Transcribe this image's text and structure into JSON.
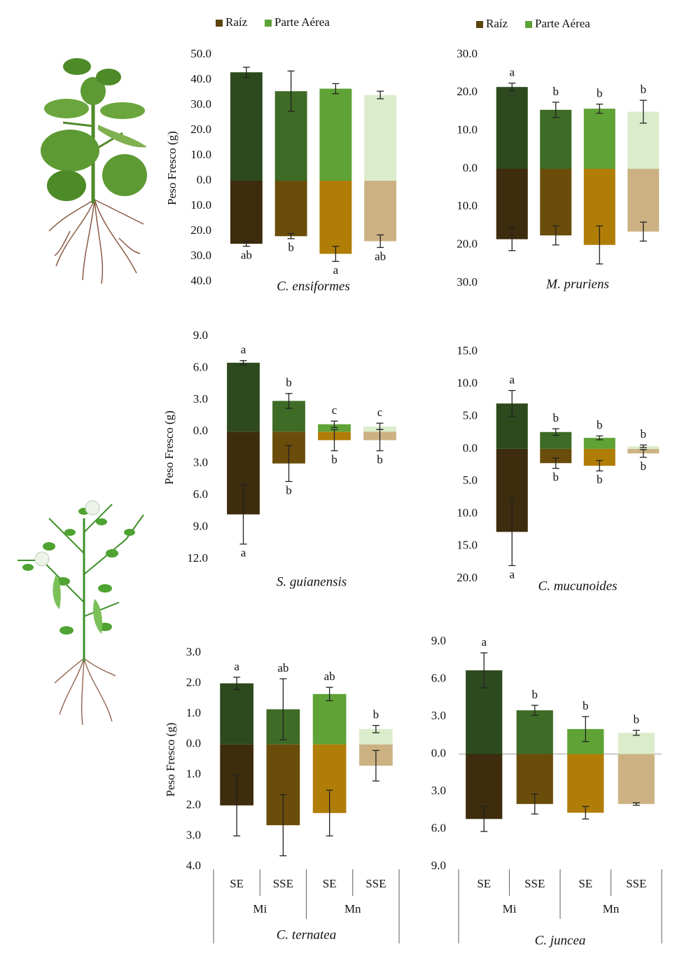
{
  "chart_data": [
    {
      "type": "bar",
      "title": "C. ensiformes",
      "ylabel": "Peso Fresco (g)",
      "series": [
        {
          "name": "Raíz",
          "color": "#5c420c",
          "colors": [
            "#3d2c0d",
            "#6a4d0a",
            "#b07d06",
            "#ccb283"
          ],
          "values": [
            -25,
            -22,
            -29,
            -24
          ],
          "errors": [
            1,
            1,
            3,
            2.5
          ],
          "letters": [
            "ab",
            "b",
            "a",
            "ab"
          ]
        },
        {
          "name": "Parte Aérea",
          "color": "#5fa236",
          "colors": [
            "#2d4a1e",
            "#3e6b26",
            "#5fa236",
            "#dbeccb"
          ],
          "values": [
            43,
            35.5,
            36.5,
            34
          ],
          "errors": [
            2,
            8,
            2,
            1.5
          ]
        }
      ],
      "ylim": [
        -40,
        50
      ],
      "yticks": [
        {
          "value": 50,
          "label": "50.0"
        },
        {
          "value": 40,
          "label": "40.0"
        },
        {
          "value": 30,
          "label": "30.0"
        },
        {
          "value": 20,
          "label": "20.0"
        },
        {
          "value": 10,
          "label": "10.0"
        },
        {
          "value": 0,
          "label": "0.0"
        },
        {
          "value": -10,
          "label": "10.0"
        },
        {
          "value": -20,
          "label": "20.0"
        },
        {
          "value": -30,
          "label": "30.0"
        },
        {
          "value": -40,
          "label": "40.0"
        }
      ]
    },
    {
      "type": "bar",
      "title": "M. pruriens",
      "series": [
        {
          "name": "Raíz",
          "color": "#5c420c",
          "colors": [
            "#3d2c0d",
            "#6a4d0a",
            "#b07d06",
            "#ccb283"
          ],
          "values": [
            -18.5,
            -17.5,
            -20,
            -16.5
          ],
          "errors": [
            3,
            2.5,
            5,
            2.5
          ]
        },
        {
          "name": "Parte Aérea",
          "color": "#5fa236",
          "colors": [
            "#2d4a1e",
            "#3e6b26",
            "#5fa236",
            "#dbeccb"
          ],
          "values": [
            21.5,
            15.5,
            15.8,
            15
          ],
          "errors": [
            1,
            2,
            1.2,
            3
          ],
          "letters": [
            "a",
            "b",
            "b",
            "b"
          ]
        }
      ],
      "ylim": [
        -30,
        30
      ],
      "yticks": [
        {
          "value": 30,
          "label": "30.0"
        },
        {
          "value": 20,
          "label": "20.0"
        },
        {
          "value": 10,
          "label": "10.0"
        },
        {
          "value": 0,
          "label": "0.0"
        },
        {
          "value": -10,
          "label": "10.0"
        },
        {
          "value": -20,
          "label": "20.0"
        },
        {
          "value": -30,
          "label": "30.0"
        }
      ]
    },
    {
      "type": "bar",
      "title": "S. guianensis",
      "ylabel": "Peso Fresco (g)",
      "series": [
        {
          "name": "Raíz",
          "colors": [
            "#3d2c0d",
            "#6a4d0a",
            "#b07d06",
            "#ccb283"
          ],
          "values": [
            -7.8,
            -3,
            -0.8,
            -0.8
          ],
          "errors": [
            2.8,
            1.7,
            1,
            1
          ],
          "letters": [
            "a",
            "b",
            "b",
            "b"
          ]
        },
        {
          "name": "Parte Aérea",
          "colors": [
            "#2d4a1e",
            "#3e6b26",
            "#5fa236",
            "#dbeccb"
          ],
          "values": [
            6.5,
            2.9,
            0.7,
            0.5
          ],
          "errors": [
            0.2,
            0.7,
            0.3,
            0.3
          ],
          "letters": [
            "a",
            "b",
            "c",
            "c"
          ]
        }
      ],
      "ylim": [
        -12,
        9
      ],
      "yticks": [
        {
          "value": 9,
          "label": "9.0"
        },
        {
          "value": 6,
          "label": "6.0"
        },
        {
          "value": 3,
          "label": "3.0"
        },
        {
          "value": 0,
          "label": "0.0"
        },
        {
          "value": -3,
          "label": "3.0"
        },
        {
          "value": -6,
          "label": "6.0"
        },
        {
          "value": -9,
          "label": "9.0"
        },
        {
          "value": -12,
          "label": "12.0"
        }
      ]
    },
    {
      "type": "bar",
      "title": "C. mucunoides",
      "series": [
        {
          "name": "Raíz",
          "colors": [
            "#3d2c0d",
            "#6a4d0a",
            "#b07d06",
            "#ccb283"
          ],
          "values": [
            -12.8,
            -2.2,
            -2.6,
            -0.7
          ],
          "errors": [
            5.2,
            0.8,
            0.8,
            0.6
          ],
          "letters": [
            "a",
            "b",
            "b",
            "b"
          ]
        },
        {
          "name": "Parte Aérea",
          "colors": [
            "#2d4a1e",
            "#3e6b26",
            "#5fa236",
            "#dbeccb"
          ],
          "values": [
            7,
            2.6,
            1.7,
            0.4
          ],
          "errors": [
            2,
            0.5,
            0.3,
            0.2
          ],
          "letters": [
            "a",
            "b",
            "b",
            "b"
          ]
        }
      ],
      "ylim": [
        -20,
        15
      ],
      "yticks": [
        {
          "value": 15,
          "label": "15.0"
        },
        {
          "value": 10,
          "label": "10.0"
        },
        {
          "value": 5,
          "label": "5.0"
        },
        {
          "value": 0,
          "label": "0.0"
        },
        {
          "value": -5,
          "label": "5.0"
        },
        {
          "value": -10,
          "label": "10.0"
        },
        {
          "value": -15,
          "label": "15.0"
        },
        {
          "value": -20,
          "label": "20.0"
        }
      ]
    },
    {
      "type": "bar",
      "title": "C. ternatea",
      "ylabel": "Peso Fresco (g)",
      "categories": [
        "SE",
        "SSE",
        "SE",
        "SSE"
      ],
      "groups": [
        "Mi",
        "Mn"
      ],
      "series": [
        {
          "name": "Raíz",
          "colors": [
            "#3d2c0d",
            "#6a4d0a",
            "#b07d06",
            "#ccb283"
          ],
          "values": [
            -2.0,
            -2.65,
            -2.25,
            -0.7
          ],
          "errors": [
            1.0,
            1.0,
            0.75,
            0.5
          ]
        },
        {
          "name": "Parte Aérea",
          "colors": [
            "#2d4a1e",
            "#3e6b26",
            "#5fa236",
            "#dbeccb"
          ],
          "values": [
            2.0,
            1.15,
            1.65,
            0.5
          ],
          "errors": [
            0.2,
            1.0,
            0.22,
            0.12
          ],
          "letters": [
            "a",
            "ab",
            "ab",
            "b"
          ]
        }
      ],
      "ylim": [
        -4,
        3
      ],
      "yticks": [
        {
          "value": 3,
          "label": "3.0"
        },
        {
          "value": 2,
          "label": "2.0"
        },
        {
          "value": 1,
          "label": "1.0"
        },
        {
          "value": 0,
          "label": "0.0"
        },
        {
          "value": -1,
          "label": "1.0"
        },
        {
          "value": -2,
          "label": "2.0"
        },
        {
          "value": -3,
          "label": "3.0"
        },
        {
          "value": -4,
          "label": "4.0"
        }
      ]
    },
    {
      "type": "bar",
      "title": "C. juncea",
      "zeroline": true,
      "categories": [
        "SE",
        "SSE",
        "SE",
        "SSE"
      ],
      "groups": [
        "Mi",
        "Mn"
      ],
      "series": [
        {
          "name": "Raíz",
          "colors": [
            "#3d2c0d",
            "#6a4d0a",
            "#b07d06",
            "#ccb283"
          ],
          "values": [
            -5.2,
            -4.0,
            -4.7,
            -4.0
          ],
          "errors": [
            1.0,
            0.8,
            0.5,
            0.1
          ]
        },
        {
          "name": "Parte Aérea",
          "colors": [
            "#2d4a1e",
            "#3e6b26",
            "#5fa236",
            "#dbeccb"
          ],
          "values": [
            6.7,
            3.5,
            2.0,
            1.7
          ],
          "errors": [
            1.4,
            0.4,
            1.0,
            0.2
          ],
          "letters": [
            "a",
            "b",
            "b",
            "b"
          ]
        }
      ],
      "ylim": [
        -9,
        9
      ],
      "yticks": [
        {
          "value": 9,
          "label": "9.0"
        },
        {
          "value": 6,
          "label": "6.0"
        },
        {
          "value": 3,
          "label": "3.0"
        },
        {
          "value": 0,
          "label": "0.0"
        },
        {
          "value": -3,
          "label": "3.0"
        },
        {
          "value": -6,
          "label": "6.0"
        },
        {
          "value": -9,
          "label": "9.0"
        }
      ]
    }
  ]
}
